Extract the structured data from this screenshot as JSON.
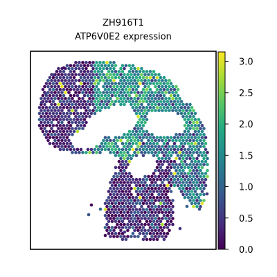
{
  "chart_data": {
    "type": "scatter",
    "title": "ZH916T1",
    "subtitle": "ATP6V0E2 expression",
    "xlabel": "",
    "ylabel": "",
    "grid": false,
    "legend": "colorbar-right",
    "colormap": "viridis",
    "colorbar": {
      "range": [
        0.0,
        3.15
      ],
      "ticks": [
        "0.0",
        "0.5",
        "1.0",
        "1.5",
        "2.0",
        "2.5",
        "3.0"
      ],
      "tick_values": [
        0.0,
        0.5,
        1.0,
        1.5,
        2.0,
        2.5,
        3.0
      ]
    },
    "regions": [
      {
        "name": "upper-right lobe",
        "mean_expression": 1.55,
        "spread": 0.55
      },
      {
        "name": "left lobe",
        "mean_expression": 0.35,
        "spread": 0.35
      },
      {
        "name": "lower-right band",
        "mean_expression": 1.2,
        "spread": 0.6
      },
      {
        "name": "bottom cluster",
        "mean_expression": 0.4,
        "spread": 0.45
      }
    ],
    "value_range": [
      0.0,
      3.15
    ]
  }
}
